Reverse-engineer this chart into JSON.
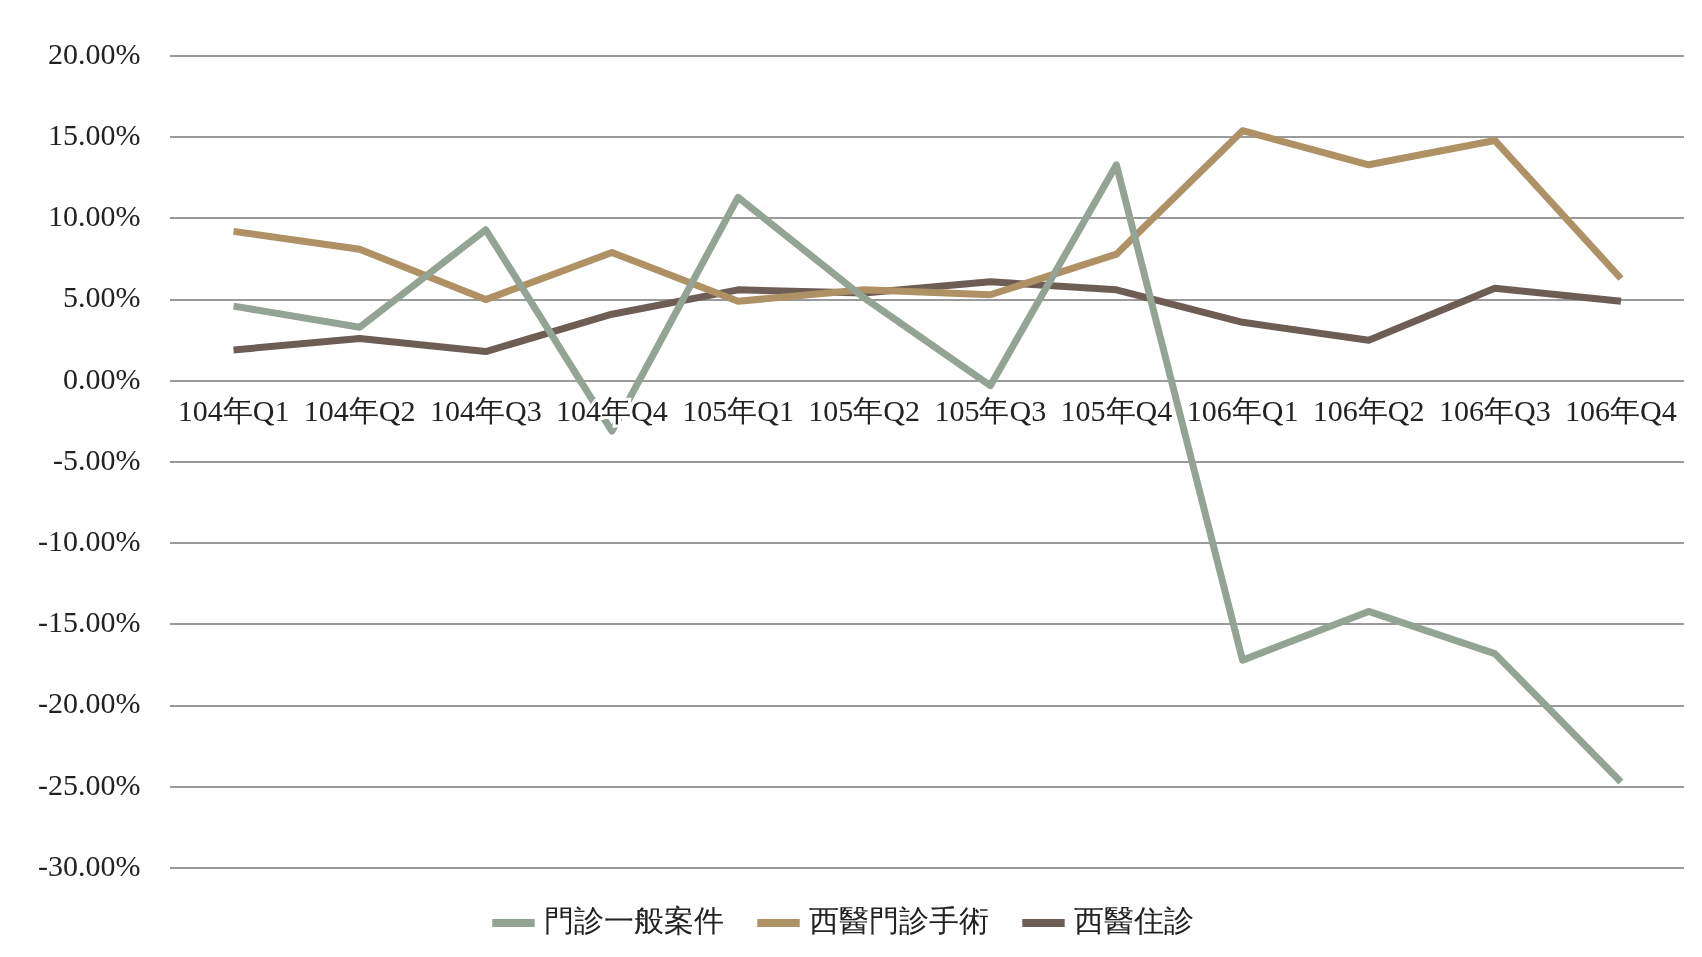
{
  "chart_data": {
    "type": "line",
    "categories": [
      "104年Q1",
      "104年Q2",
      "104年Q3",
      "104年Q4",
      "105年Q1",
      "105年Q2",
      "105年Q3",
      "105年Q4",
      "106年Q1",
      "106年Q2",
      "106年Q3",
      "106年Q4"
    ],
    "series": [
      {
        "name": "門診一般案件",
        "color": "#93a394",
        "values": [
          4.6,
          3.3,
          9.3,
          -3.1,
          11.3,
          5.1,
          -0.3,
          13.3,
          -17.2,
          -14.2,
          -16.8,
          -24.7
        ]
      },
      {
        "name": "西醫門診手術",
        "color": "#ae9164",
        "values": [
          9.2,
          8.1,
          5.0,
          7.9,
          4.9,
          5.6,
          5.3,
          7.8,
          15.4,
          13.3,
          14.8,
          6.3
        ]
      },
      {
        "name": "西醫住診",
        "color": "#6e5d55",
        "values": [
          1.9,
          2.6,
          1.8,
          4.1,
          5.6,
          5.4,
          6.1,
          5.6,
          3.6,
          2.5,
          5.7,
          4.9
        ]
      }
    ],
    "ylim": [
      -30,
      20
    ],
    "yticks": [
      {
        "value": 20,
        "label": "20.00%"
      },
      {
        "value": 15,
        "label": "15.00%"
      },
      {
        "value": 10,
        "label": "10.00%"
      },
      {
        "value": 5,
        "label": "5.00%"
      },
      {
        "value": 0,
        "label": "0.00%"
      },
      {
        "value": -5,
        "label": "-5.00%"
      },
      {
        "value": -10,
        "label": "-10.00%"
      },
      {
        "value": -15,
        "label": "-15.00%"
      },
      {
        "value": -20,
        "label": "-20.00%"
      },
      {
        "value": -25,
        "label": "-25.00%"
      },
      {
        "value": -30,
        "label": "-30.00%"
      }
    ],
    "grid": "y",
    "legend": "bottom",
    "marker": "none",
    "line_style": "solid"
  }
}
